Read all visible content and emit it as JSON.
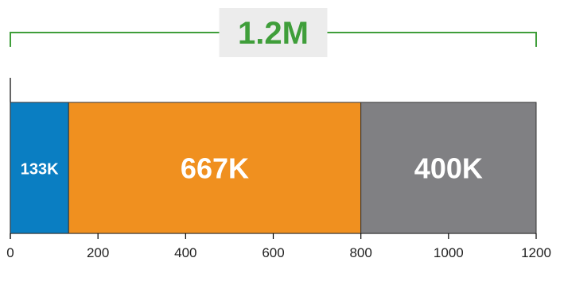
{
  "chart_data": {
    "type": "bar",
    "orientation": "horizontal",
    "stacked": true,
    "total_label": "1.2M",
    "xlim": [
      0,
      1200
    ],
    "x_ticks": [
      0,
      200,
      400,
      600,
      800,
      1000,
      1200
    ],
    "segments": [
      {
        "value": 133,
        "label": "133K",
        "color": "#0a7ec2"
      },
      {
        "value": 667,
        "label": "667K",
        "color": "#f0901f"
      },
      {
        "value": 400,
        "label": "400K",
        "color": "#808083"
      }
    ],
    "total_color": "#3f9e3a",
    "total_box_color": "#ececec",
    "grid": false
  }
}
